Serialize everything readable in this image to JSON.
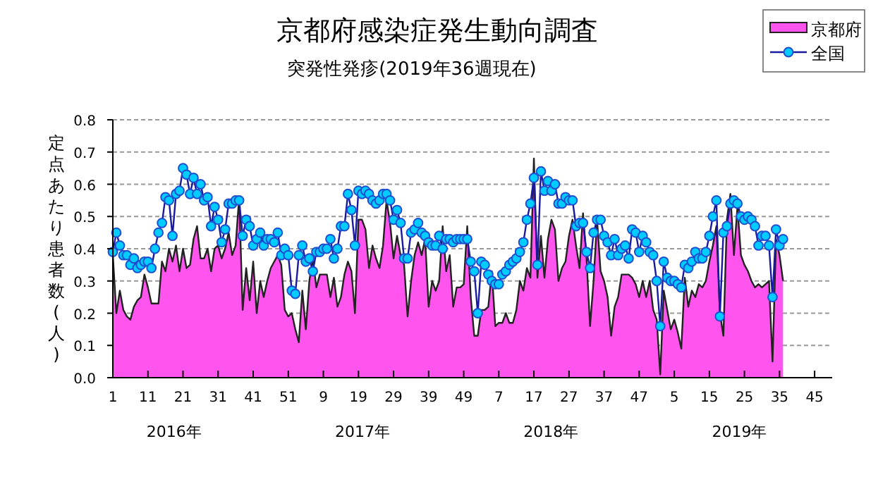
{
  "chart_data": {
    "type": "line",
    "title": "京都府感染症発生動向調査",
    "subtitle": "突発性発疹(2019年36週現在)",
    "ylabel": "定点あたり患者数(人)",
    "annotations": [
      "2016年",
      "2017年",
      "2018年",
      "2019年"
    ],
    "categories": [
      "1",
      null,
      null,
      null,
      null,
      null,
      null,
      null,
      null,
      null,
      "11",
      null,
      null,
      null,
      null,
      null,
      null,
      null,
      null,
      null,
      "21",
      null,
      null,
      null,
      null,
      null,
      null,
      null,
      null,
      null,
      "31",
      null,
      null,
      null,
      null,
      null,
      null,
      null,
      null,
      null,
      "41",
      null,
      null,
      null,
      null,
      null,
      null,
      null,
      null,
      null,
      "51",
      null,
      null,
      null,
      null,
      null,
      null,
      null,
      null,
      null,
      "9",
      null,
      null,
      null,
      null,
      null,
      null,
      null,
      null,
      null,
      "19",
      null,
      null,
      null,
      null,
      null,
      null,
      null,
      null,
      null,
      "29",
      null,
      null,
      null,
      null,
      null,
      null,
      null,
      null,
      null,
      "39",
      null,
      null,
      null,
      null,
      null,
      null,
      null,
      null,
      null,
      "49",
      null,
      null,
      null,
      null,
      null,
      null,
      null,
      null,
      null,
      "7",
      null,
      null,
      null,
      null,
      null,
      null,
      null,
      null,
      null,
      "17",
      null,
      null,
      null,
      null,
      null,
      null,
      null,
      null,
      null,
      "27",
      null,
      null,
      null,
      null,
      null,
      null,
      null,
      null,
      null,
      "37",
      null,
      null,
      null,
      null,
      null,
      null,
      null,
      null,
      null,
      "47",
      null,
      null,
      null,
      null,
      null,
      null,
      null,
      null,
      null,
      "5",
      null,
      null,
      null,
      null,
      null,
      null,
      null,
      null,
      null,
      "15",
      null,
      null,
      null,
      null,
      null,
      null,
      null,
      null,
      null,
      "25",
      null,
      null,
      null,
      null,
      null,
      null,
      null,
      null,
      null,
      "35",
      null,
      null,
      null,
      null,
      null,
      null,
      null,
      null,
      null,
      "45",
      null,
      null,
      null,
      null,
      null
    ],
    "ylim": [
      0,
      0.8
    ],
    "yticks": [
      {
        "value": 0,
        "label": "0.0"
      },
      {
        "value": 0.1,
        "label": "0.1"
      },
      {
        "value": 0.2,
        "label": "0.2"
      },
      {
        "value": 0.3,
        "label": "0.3"
      },
      {
        "value": 0.4,
        "label": "0.4"
      },
      {
        "value": 0.5,
        "label": "0.5"
      },
      {
        "value": 0.6,
        "label": "0.6"
      },
      {
        "value": 0.7,
        "label": "0.7"
      },
      {
        "value": 0.8,
        "label": "0.8"
      }
    ],
    "grid": "y",
    "legend": "top right",
    "series": [
      {
        "name": "京都府",
        "type": "area",
        "color": "#ff55ee",
        "values": [
          0.38,
          0.2,
          0.27,
          0.21,
          0.19,
          0.18,
          0.22,
          0.24,
          0.25,
          0.32,
          0.28,
          0.23,
          0.23,
          0.23,
          0.36,
          0.33,
          0.4,
          0.36,
          0.41,
          0.33,
          0.4,
          0.34,
          0.35,
          0.43,
          0.47,
          0.37,
          0.37,
          0.4,
          0.33,
          0.4,
          0.41,
          0.37,
          0.4,
          0.45,
          0.38,
          0.41,
          0.56,
          0.21,
          0.34,
          0.24,
          0.36,
          0.2,
          0.3,
          0.25,
          0.3,
          0.34,
          0.36,
          0.38,
          0.35,
          0.21,
          0.19,
          0.2,
          0.15,
          0.11,
          0.27,
          0.15,
          0.3,
          0.37,
          0.28,
          0.32,
          0.32,
          0.32,
          0.25,
          0.31,
          0.22,
          0.25,
          0.32,
          0.36,
          0.33,
          0.2,
          0.49,
          0.49,
          0.46,
          0.34,
          0.41,
          0.37,
          0.34,
          0.41,
          0.55,
          0.48,
          0.37,
          0.44,
          0.38,
          0.35,
          0.19,
          0.3,
          0.38,
          0.42,
          0.38,
          0.43,
          0.22,
          0.3,
          0.27,
          0.3,
          0.47,
          0.33,
          0.38,
          0.22,
          0.28,
          0.28,
          0.29,
          0.47,
          0.25,
          0.13,
          0.13,
          0.21,
          0.21,
          0.22,
          0.33,
          0.16,
          0.17,
          0.17,
          0.2,
          0.17,
          0.17,
          0.21,
          0.3,
          0.27,
          0.34,
          0.31,
          0.68,
          0.31,
          0.44,
          0.31,
          0.43,
          0.49,
          0.46,
          0.3,
          0.34,
          0.36,
          0.44,
          0.49,
          0.41,
          0.34,
          0.51,
          0.37,
          0.16,
          0.3,
          0.49,
          0.33,
          0.3,
          0.25,
          0.13,
          0.22,
          0.25,
          0.32,
          0.32,
          0.32,
          0.31,
          0.29,
          0.25,
          0.3,
          0.25,
          0.3,
          0.21,
          0.18,
          0.01,
          0.27,
          0.21,
          0.15,
          0.18,
          0.14,
          0.09,
          0.31,
          0.22,
          0.27,
          0.25,
          0.29,
          0.28,
          0.3,
          0.36,
          0.41,
          0.47,
          0.2,
          0.13,
          0.49,
          0.57,
          0.38,
          0.53,
          0.38,
          0.35,
          0.33,
          0.3,
          0.28,
          0.29,
          0.28,
          0.29,
          0.3,
          0.05,
          0.43,
          0.38,
          0.3,
          null,
          null,
          null,
          null,
          null,
          null,
          null,
          null,
          null,
          null,
          null,
          null,
          null,
          null
        ]
      },
      {
        "name": "全国",
        "type": "line",
        "color": "#00ccff",
        "marker": "circle",
        "values": [
          0.39,
          0.45,
          0.41,
          0.38,
          0.38,
          0.35,
          0.37,
          0.34,
          0.35,
          0.36,
          0.36,
          0.34,
          0.4,
          0.45,
          0.48,
          0.56,
          0.55,
          0.44,
          0.57,
          0.58,
          0.65,
          0.63,
          0.57,
          0.62,
          0.57,
          0.6,
          0.55,
          0.56,
          0.47,
          0.53,
          0.49,
          0.42,
          0.46,
          0.54,
          0.54,
          0.55,
          0.55,
          0.44,
          0.49,
          0.47,
          0.41,
          0.43,
          0.45,
          0.41,
          0.43,
          0.43,
          0.42,
          0.45,
          0.38,
          0.4,
          0.38,
          0.27,
          0.26,
          0.38,
          0.41,
          0.36,
          0.37,
          0.33,
          0.39,
          0.39,
          0.4,
          0.4,
          0.43,
          0.37,
          0.4,
          0.47,
          0.47,
          0.57,
          0.52,
          0.41,
          0.58,
          0.57,
          0.58,
          0.57,
          0.55,
          0.54,
          0.55,
          0.57,
          0.57,
          0.55,
          0.49,
          0.52,
          0.48,
          0.37,
          0.37,
          0.45,
          0.46,
          0.48,
          0.45,
          0.44,
          0.42,
          0.41,
          0.41,
          0.44,
          0.4,
          0.43,
          0.43,
          0.42,
          0.43,
          0.43,
          0.43,
          0.43,
          0.36,
          0.33,
          0.2,
          0.36,
          0.35,
          0.32,
          0.3,
          0.29,
          0.29,
          0.32,
          0.33,
          0.35,
          0.36,
          0.37,
          0.39,
          0.42,
          0.49,
          0.54,
          0.62,
          0.35,
          0.64,
          0.58,
          0.61,
          0.58,
          0.6,
          0.54,
          0.54,
          0.56,
          0.55,
          0.55,
          0.47,
          0.48,
          0.48,
          0.39,
          0.34,
          0.45,
          0.49,
          0.49,
          0.44,
          0.42,
          0.38,
          0.43,
          0.38,
          0.4,
          0.41,
          0.37,
          0.46,
          0.45,
          0.39,
          0.44,
          0.42,
          0.39,
          0.38,
          0.3,
          0.16,
          0.36,
          0.31,
          0.3,
          0.3,
          0.29,
          0.28,
          0.35,
          0.34,
          0.36,
          0.39,
          0.37,
          0.37,
          0.39,
          0.44,
          0.5,
          0.55,
          0.19,
          0.45,
          0.47,
          0.54,
          0.55,
          0.54,
          0.5,
          0.49,
          0.5,
          0.49,
          0.47,
          0.41,
          0.44,
          0.44,
          0.41,
          0.25,
          0.46,
          0.41,
          0.43,
          null,
          null,
          null,
          null,
          null,
          null,
          null,
          null,
          null,
          null,
          null,
          null,
          null,
          null
        ]
      }
    ]
  }
}
